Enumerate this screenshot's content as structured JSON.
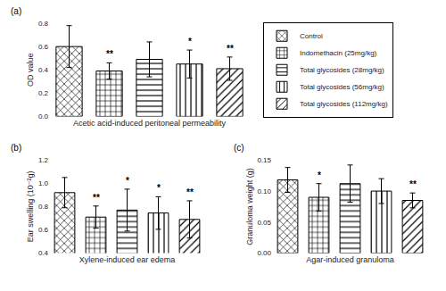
{
  "chart_data": [
    {
      "type": "bar",
      "title": "(a)",
      "xlabel": "Acetic acid-induced peritoneal permeability",
      "ylabel": "OD value",
      "categories": [
        "Control",
        "Indomethacin (25mg/kg)",
        "Total glycosides (28mg/kg)",
        "Total glycosides (56mg/kg)",
        "Total glycosides (112mg/kg)"
      ],
      "values": [
        0.6,
        0.39,
        0.49,
        0.45,
        0.41
      ],
      "errors": [
        0.18,
        0.07,
        0.15,
        0.12,
        0.1
      ],
      "significance": [
        null,
        "**",
        null,
        "*",
        "**"
      ],
      "color": "#ffffff",
      "ylim": [
        0,
        0.8
      ],
      "yticks": [
        {
          "value": 0,
          "label": "0.0"
        },
        0.2,
        0.4,
        0.6,
        0.8
      ],
      "grid": false,
      "tick_labels": "y",
      "legend": "right"
    },
    {
      "type": "bar",
      "title": "(b)",
      "xlabel": "Xylene-induced ear edema",
      "ylabel": "Ear swelling (10⁻²g)",
      "categories": [
        "Control",
        "Indomethacin (25mg/kg)",
        "Total glycosides (28mg/kg)",
        "Total glycosides (56mg/kg)",
        "Total glycosides (112mg/kg)"
      ],
      "values": [
        0.92,
        0.71,
        0.77,
        0.745,
        0.69
      ],
      "errors": [
        0.13,
        0.095,
        0.18,
        0.14,
        0.16
      ],
      "significance": [
        null,
        "**",
        "*",
        "*",
        "**"
      ],
      "color": "#ffffff",
      "ylim": [
        0.4,
        1.2
      ],
      "yticks": [
        0.4,
        0.6,
        0.8,
        {
          "value": 1,
          "label": "1.0"
        },
        1.2
      ],
      "grid": false,
      "tick_labels": "y"
    },
    {
      "type": "bar",
      "title": "(c)",
      "xlabel": "Agar-induced granuloma",
      "ylabel": "Granuloma weight (g)",
      "categories": [
        "Control",
        "Indomethacin (25mg/kg)",
        "Total glycosides (28mg/kg)",
        "Total glycosides (56mg/kg)",
        "Total glycosides (112mg/kg)"
      ],
      "values": [
        0.118,
        0.09,
        0.112,
        0.1,
        0.085
      ],
      "errors": [
        0.02,
        0.022,
        0.03,
        0.02,
        0.012
      ],
      "significance": [
        null,
        "*",
        null,
        null,
        "**"
      ],
      "color": "#ffffff",
      "ylim": [
        0,
        0.15
      ],
      "yticks": [
        {
          "value": 0,
          "label": "0.00"
        },
        0.05,
        {
          "value": 0.1,
          "label": "0.10"
        },
        0.15
      ],
      "grid": false,
      "tick_labels": "y"
    }
  ]
}
